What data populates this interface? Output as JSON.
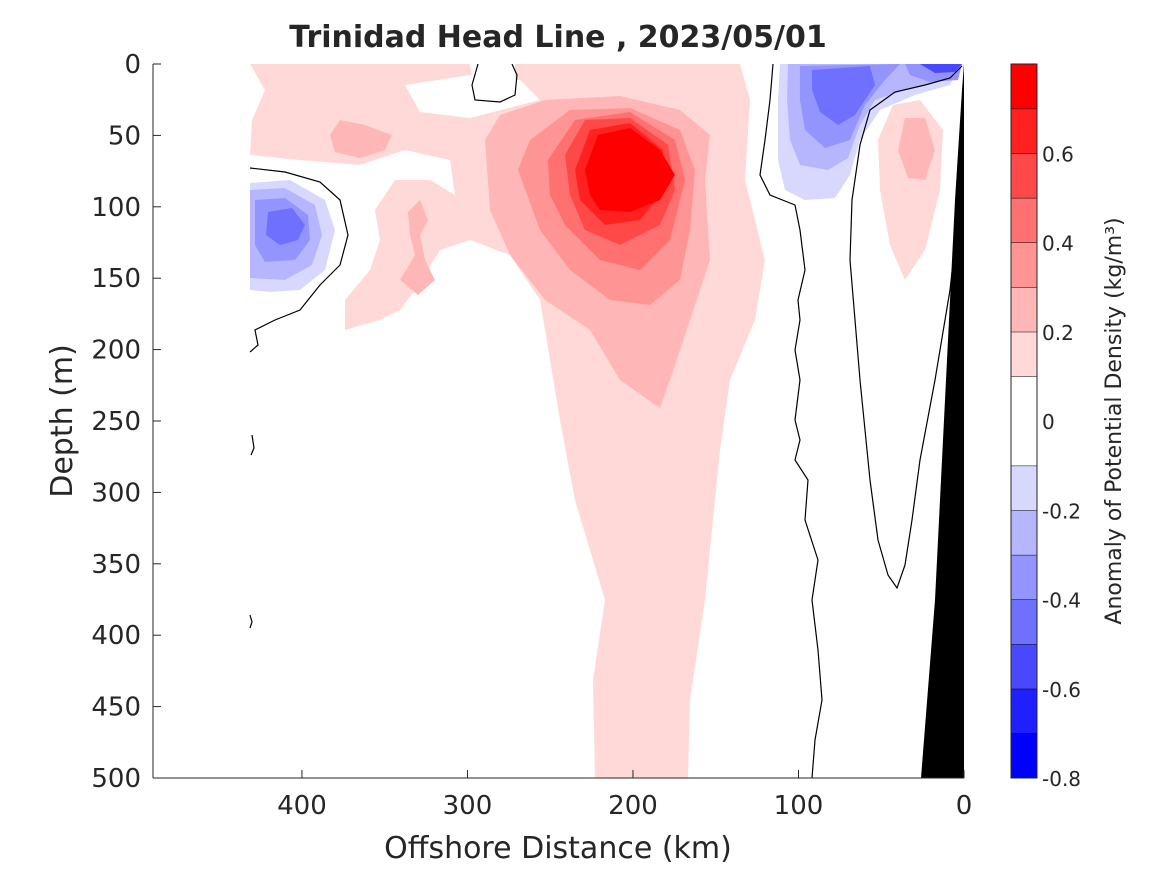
{
  "chart_data": {
    "type": "heatmap",
    "subtype": "filled-contour section",
    "title": "Trinidad Head Line , 2023/05/01",
    "xlabel": "Offshore Distance (km)",
    "ylabel": "Depth (m)",
    "x_reversed": true,
    "y_reversed": true,
    "xlim": [
      0,
      490
    ],
    "ylim": [
      0,
      500
    ],
    "xticks": [
      400,
      300,
      200,
      100,
      0
    ],
    "yticks": [
      0,
      50,
      100,
      150,
      200,
      250,
      300,
      350,
      400,
      450,
      500
    ],
    "colorbar": {
      "label": "Anomaly of Potential Density (kg/m³)",
      "range": [
        -0.8,
        0.8
      ],
      "ticks": [
        -0.8,
        -0.6,
        -0.4,
        -0.2,
        0,
        0.2,
        0.4,
        0.6
      ],
      "tick_labels": [
        "-0.8",
        "-0.6",
        "-0.4",
        "-0.2",
        "0",
        "0.2",
        "0.4",
        "0.6"
      ],
      "levels": [
        -0.8,
        -0.7,
        -0.6,
        -0.5,
        -0.4,
        -0.3,
        -0.2,
        -0.1,
        0.1,
        0.2,
        0.3,
        0.4,
        0.5,
        0.6,
        0.7,
        0.8
      ],
      "colors": [
        "#0000ff",
        "#2020ff",
        "#4848ff",
        "#7070ff",
        "#9494ff",
        "#b6b6ff",
        "#d8d8ff",
        "#ffffff",
        "#ffd8d8",
        "#ffb6b6",
        "#ff9494",
        "#ff7070",
        "#ff4848",
        "#ff2020",
        "#ff0000"
      ]
    },
    "features": [
      {
        "kind": "positive",
        "label": "subsurface density maximum",
        "peak_x_km": 210,
        "peak_depth_m": 85,
        "peak_value": 0.75,
        "extent_x_km": [
          150,
          290
        ],
        "extent_depth_m": [
          20,
          240
        ]
      },
      {
        "kind": "positive",
        "label": "weak positive tongue",
        "x_km": [
          165,
          225
        ],
        "depth_m": [
          200,
          500
        ],
        "value": 0.15
      },
      {
        "kind": "negative",
        "label": "offshore eddy",
        "peak_x_km": 410,
        "peak_depth_m": 115,
        "peak_value": -0.45
      },
      {
        "kind": "negative",
        "label": "nearshore upper layer",
        "peak_x_km": 70,
        "peak_depth_m": 30,
        "peak_value": -0.4
      },
      {
        "kind": "negative",
        "label": "surface near coast",
        "peak_x_km": 15,
        "peak_depth_m": 0,
        "peak_value": -0.6
      },
      {
        "kind": "positive",
        "label": "nearshore positive",
        "peak_x_km": 35,
        "peak_depth_m": 65,
        "peak_value": 0.25
      },
      {
        "kind": "bathymetry",
        "label": "seafloor",
        "color": "#000000"
      }
    ]
  }
}
